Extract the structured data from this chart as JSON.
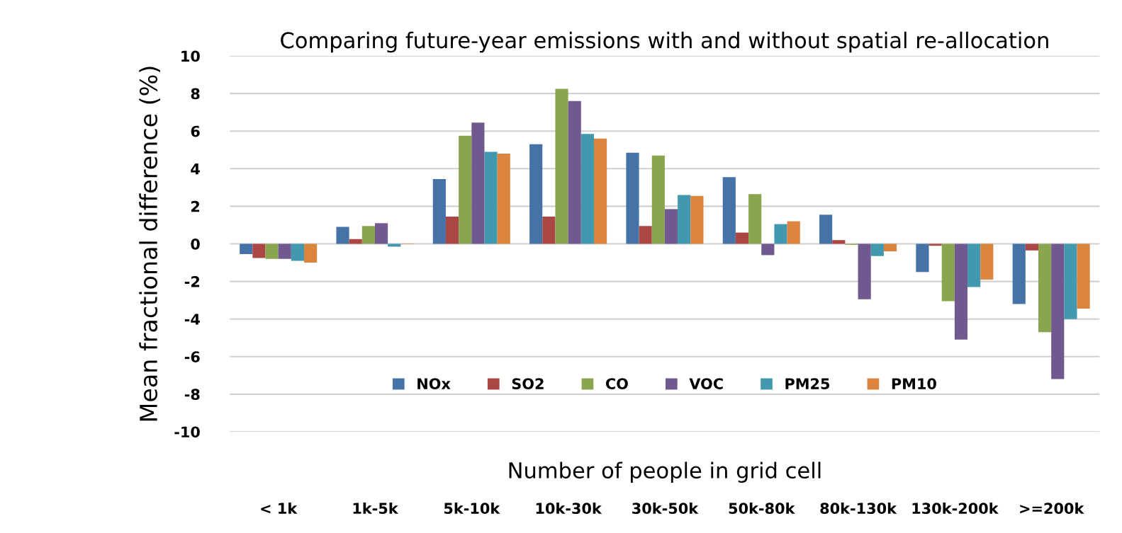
{
  "chart_data": {
    "type": "bar",
    "title": "Comparing future-year emissions with and without spatial re-allocation",
    "xlabel": "Number of people in grid cell",
    "ylabel": "Mean fractional difference (%)",
    "categories": [
      "< 1k",
      "1k-5k",
      "5k-10k",
      "10k-30k",
      "30k-50k",
      "50k-80k",
      "80k-130k",
      "130k-200k",
      ">=200k"
    ],
    "series": [
      {
        "name": "NOx",
        "color": "#4572a7",
        "values": [
          -0.55,
          0.9,
          3.45,
          5.3,
          4.85,
          3.55,
          1.55,
          -1.5,
          -3.2
        ]
      },
      {
        "name": "SO2",
        "color": "#aa4643",
        "values": [
          -0.75,
          0.25,
          1.45,
          1.45,
          0.95,
          0.6,
          0.2,
          -0.1,
          -0.35
        ]
      },
      {
        "name": "CO",
        "color": "#89a54e",
        "values": [
          -0.8,
          0.95,
          5.75,
          8.25,
          4.7,
          2.65,
          -0.05,
          -3.05,
          -4.7
        ]
      },
      {
        "name": "VOC",
        "color": "#71588f",
        "values": [
          -0.8,
          1.1,
          6.45,
          7.6,
          1.85,
          -0.6,
          -2.95,
          -5.1,
          -7.2
        ]
      },
      {
        "name": "PM25",
        "color": "#4198af",
        "values": [
          -0.9,
          -0.15,
          4.9,
          5.85,
          2.6,
          1.05,
          -0.65,
          -2.3,
          -4.0
        ]
      },
      {
        "name": "PM10",
        "color": "#db843d",
        "values": [
          -1.0,
          -0.02,
          4.8,
          5.6,
          2.55,
          1.2,
          -0.4,
          -1.9,
          -3.45
        ]
      }
    ],
    "ylim": [
      -10,
      10
    ],
    "yticks": [
      -10,
      -8,
      -6,
      -4,
      -2,
      0,
      2,
      4,
      6,
      8,
      10
    ],
    "grid": "y",
    "legend": "bottom"
  }
}
